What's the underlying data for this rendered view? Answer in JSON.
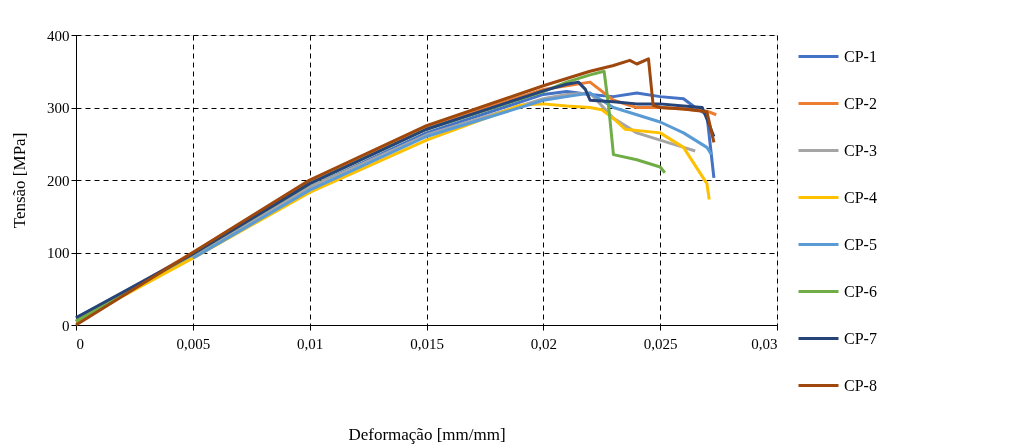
{
  "chart_data": {
    "type": "line",
    "xlabel": "Deformação [mm/mm]",
    "ylabel": "Tensão [MPa]",
    "xlim": [
      0,
      0.03
    ],
    "ylim": [
      0,
      400
    ],
    "xticks": [
      0,
      {
        "value": 0.005,
        "label": "0,005"
      },
      {
        "value": 0.01,
        "label": "0,01"
      },
      {
        "value": 0.015,
        "label": "0,015"
      },
      {
        "value": 0.02,
        "label": "0,02"
      },
      {
        "value": 0.025,
        "label": "0,025"
      },
      {
        "value": 0.03,
        "label": "0,03"
      }
    ],
    "yticks": [
      0,
      100,
      200,
      300,
      400
    ],
    "grid": true,
    "legend": "right",
    "line_style": "solid",
    "marker": "none",
    "series": [
      {
        "name": "CP-1",
        "color": "#4472c4",
        "x": [
          0,
          0.005,
          0.01,
          0.015,
          0.02,
          0.021,
          0.022,
          0.023,
          0.024,
          0.025,
          0.026,
          0.0265,
          0.027,
          0.0273
        ],
        "values": [
          10,
          95,
          190,
          265,
          318,
          322,
          318,
          315,
          320,
          315,
          312,
          300,
          290,
          203
        ]
      },
      {
        "name": "CP-2",
        "color": "#ed7d31",
        "x": [
          0,
          0.005,
          0.01,
          0.015,
          0.02,
          0.021,
          0.022,
          0.023,
          0.024,
          0.025,
          0.026,
          0.027,
          0.0274
        ],
        "values": [
          5,
          100,
          198,
          273,
          325,
          330,
          335,
          310,
          300,
          300,
          298,
          295,
          290
        ]
      },
      {
        "name": "CP-3",
        "color": "#a5a5a5",
        "x": [
          0,
          0.005,
          0.01,
          0.015,
          0.02,
          0.021,
          0.022,
          0.023,
          0.024,
          0.025,
          0.026,
          0.0265
        ],
        "values": [
          5,
          96,
          190,
          262,
          312,
          318,
          320,
          285,
          265,
          255,
          245,
          240
        ]
      },
      {
        "name": "CP-4",
        "color": "#ffc000",
        "x": [
          0,
          0.005,
          0.01,
          0.015,
          0.019,
          0.02,
          0.021,
          0.022,
          0.0225,
          0.023,
          0.0235,
          0.025,
          0.026,
          0.027,
          0.0271
        ],
        "values": [
          5,
          92,
          183,
          255,
          303,
          305,
          302,
          300,
          297,
          285,
          270,
          265,
          245,
          195,
          173
        ]
      },
      {
        "name": "CP-5",
        "color": "#5b9bd5",
        "x": [
          0.005,
          0.01,
          0.015,
          0.02,
          0.021,
          0.022,
          0.023,
          0.024,
          0.025,
          0.026,
          0.027,
          0.0272
        ],
        "values": [
          92,
          186,
          260,
          310,
          315,
          320,
          300,
          290,
          280,
          265,
          245,
          235
        ]
      },
      {
        "name": "CP-6",
        "color": "#70ad47",
        "x": [
          0,
          0.005,
          0.01,
          0.015,
          0.02,
          0.021,
          0.022,
          0.0226,
          0.0228,
          0.023,
          0.024,
          0.025,
          0.0252
        ],
        "values": [
          5,
          98,
          195,
          270,
          322,
          335,
          345,
          350,
          300,
          235,
          228,
          218,
          210
        ]
      },
      {
        "name": "CP-7",
        "color": "#264478",
        "x": [
          0,
          0.005,
          0.01,
          0.015,
          0.02,
          0.021,
          0.0215,
          0.0218,
          0.022,
          0.023,
          0.024,
          0.025,
          0.026,
          0.0268,
          0.0273
        ],
        "values": [
          10,
          98,
          195,
          270,
          323,
          332,
          335,
          325,
          310,
          308,
          305,
          305,
          302,
          300,
          260
        ]
      },
      {
        "name": "CP-8",
        "color": "#9e480e",
        "x": [
          0,
          0.005,
          0.01,
          0.015,
          0.02,
          0.021,
          0.022,
          0.023,
          0.0237,
          0.024,
          0.0245,
          0.0247,
          0.025,
          0.026,
          0.027,
          0.0273
        ],
        "values": [
          0,
          100,
          200,
          275,
          330,
          340,
          350,
          358,
          365,
          360,
          367,
          303,
          300,
          298,
          294,
          252
        ]
      }
    ]
  }
}
